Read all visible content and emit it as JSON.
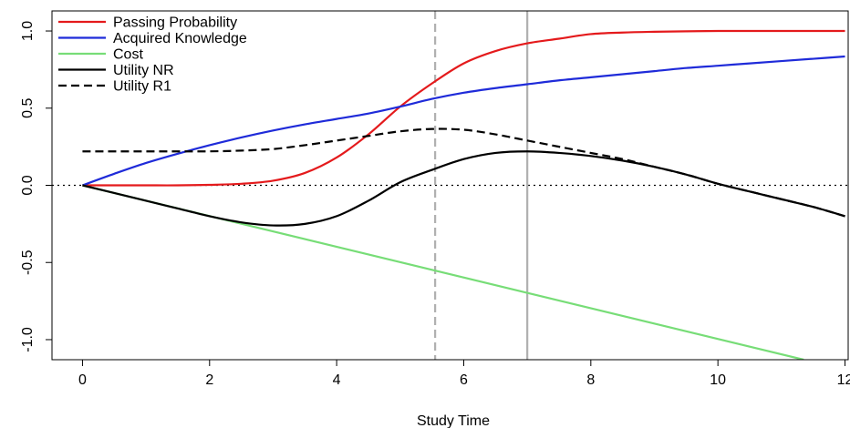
{
  "chart_data": {
    "type": "line",
    "title": "",
    "xlabel": "Study Time",
    "ylabel": "",
    "xlim": [
      -0.48,
      12.05
    ],
    "ylim": [
      -1.13,
      1.13
    ],
    "x_ticks": [
      0,
      2,
      4,
      6,
      8,
      10,
      12
    ],
    "x_tick_labels": [
      "0",
      "2",
      "4",
      "6",
      "8",
      "10",
      "12"
    ],
    "y_ticks": [
      -1.0,
      -0.5,
      0.0,
      0.5,
      1.0
    ],
    "y_tick_labels": [
      "-1.0",
      "-0.5",
      "0.0",
      "0.5",
      "1.0"
    ],
    "grid": false,
    "legend_position": "top-left",
    "series": [
      {
        "name": "Passing Probability",
        "color": "#e41a1c",
        "dash": "solid",
        "x": [
          0,
          0.5,
          1,
          1.5,
          2,
          2.5,
          3,
          3.5,
          4,
          4.5,
          5,
          5.5,
          6,
          6.5,
          7,
          7.5,
          8,
          8.5,
          9,
          9.5,
          10,
          10.5,
          11,
          11.5,
          12
        ],
        "y": [
          0,
          0,
          0,
          0,
          0.003,
          0.01,
          0.03,
          0.08,
          0.18,
          0.33,
          0.51,
          0.66,
          0.79,
          0.87,
          0.92,
          0.95,
          0.98,
          0.99,
          0.995,
          0.998,
          1.0,
          1.0,
          1.0,
          1.0,
          1.0
        ]
      },
      {
        "name": "Acquired Knowledge",
        "color": "#1f2bd9",
        "dash": "solid",
        "x": [
          0,
          0.5,
          1,
          1.5,
          2,
          2.5,
          3,
          3.5,
          4,
          4.5,
          5,
          5.5,
          6,
          6.5,
          7,
          7.5,
          8,
          8.5,
          9,
          9.5,
          10,
          10.5,
          11,
          11.5,
          12
        ],
        "y": [
          0,
          0.075,
          0.145,
          0.205,
          0.26,
          0.31,
          0.355,
          0.395,
          0.43,
          0.465,
          0.51,
          0.56,
          0.6,
          0.63,
          0.655,
          0.68,
          0.7,
          0.72,
          0.74,
          0.76,
          0.775,
          0.79,
          0.805,
          0.82,
          0.835
        ]
      },
      {
        "name": "Cost",
        "color": "#77dd77",
        "dash": "solid",
        "x": [
          0,
          11.35
        ],
        "y": [
          0,
          -1.13
        ]
      },
      {
        "name": "Utility NR",
        "color": "#000000",
        "dash": "solid",
        "x": [
          0,
          0.5,
          1,
          1.5,
          2,
          2.5,
          3,
          3.5,
          4,
          4.5,
          5,
          5.5,
          6,
          6.5,
          7,
          7.5,
          8,
          8.5,
          9,
          9.5,
          10,
          10.5,
          11,
          11.5,
          12
        ],
        "y": [
          0,
          -0.05,
          -0.1,
          -0.15,
          -0.2,
          -0.24,
          -0.26,
          -0.25,
          -0.2,
          -0.1,
          0.02,
          0.1,
          0.17,
          0.21,
          0.22,
          0.21,
          0.19,
          0.16,
          0.12,
          0.07,
          0.01,
          -0.04,
          -0.09,
          -0.14,
          -0.2
        ]
      },
      {
        "name": "Utility R1",
        "color": "#000000",
        "dash": "dashed",
        "x": [
          0,
          0.5,
          1,
          1.5,
          2,
          2.5,
          3,
          3.5,
          4,
          4.5,
          5,
          5.5,
          6,
          6.5,
          7,
          7.5,
          8,
          8.5,
          9,
          9.5,
          10,
          10.5,
          11,
          11.5,
          12
        ],
        "y": [
          0.22,
          0.22,
          0.22,
          0.22,
          0.22,
          0.225,
          0.235,
          0.26,
          0.29,
          0.32,
          0.35,
          0.365,
          0.36,
          0.33,
          0.29,
          0.25,
          0.21,
          0.17,
          0.12,
          0.07,
          0.01,
          -0.04,
          -0.09,
          -0.14,
          -0.2
        ]
      }
    ],
    "reference_lines": [
      {
        "orientation": "horizontal",
        "value": 0,
        "color": "#000000",
        "dash": "dotted"
      },
      {
        "orientation": "vertical",
        "value": 5.55,
        "color": "#b0b0b0",
        "dash": "dashed"
      },
      {
        "orientation": "vertical",
        "value": 7.0,
        "color": "#b0b0b0",
        "dash": "solid"
      }
    ]
  }
}
